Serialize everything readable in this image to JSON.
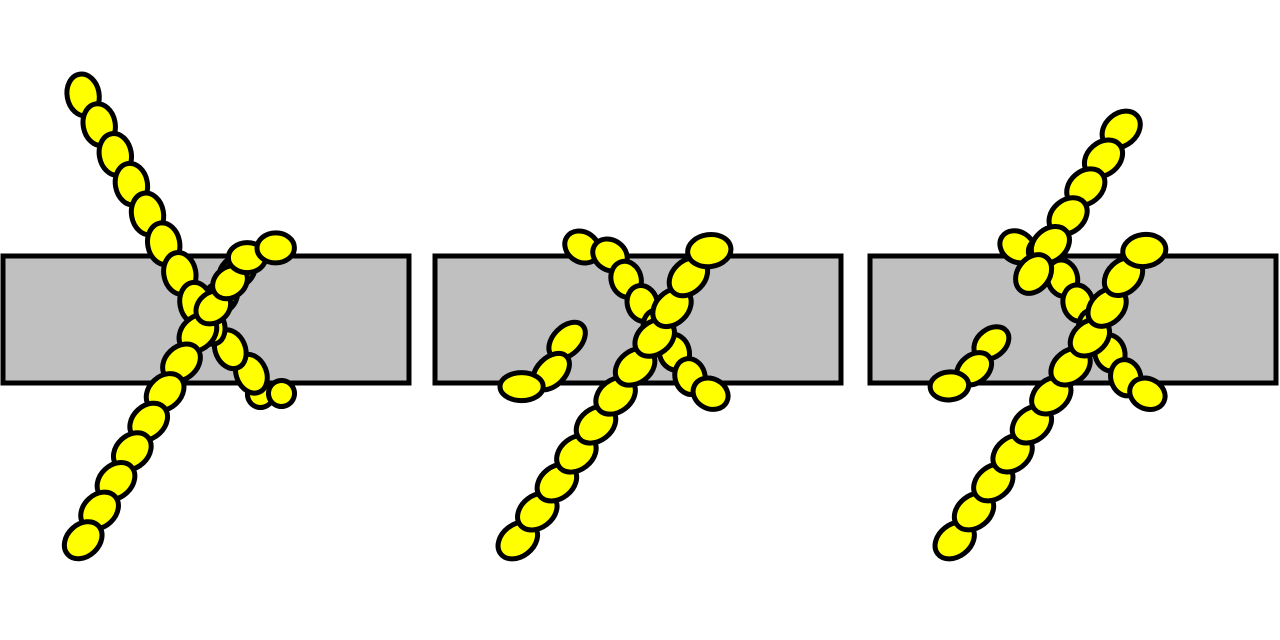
{
  "colors": {
    "background": "#ffffff",
    "rope_fill": "#ffff00",
    "rope_outline": "#000000",
    "bar_fill": "#c0c0c0",
    "bar_outline": "#000000"
  },
  "panels": [
    {
      "step": 1,
      "bar": "horizontal-bar",
      "rope_segments": [
        "long-diagonal-strand",
        "wrap-over",
        "wrap-under"
      ]
    },
    {
      "step": 2,
      "bar": "horizontal-bar",
      "rope_segments": [
        "long-diagonal-strand",
        "short-tail",
        "wrap-over",
        "wrap-under"
      ]
    },
    {
      "step": 3,
      "bar": "horizontal-bar",
      "rope_segments": [
        "long-diagonal-strand",
        "second-diagonal-strand",
        "short-tail",
        "wrap-over",
        "wrap-under"
      ]
    }
  ]
}
